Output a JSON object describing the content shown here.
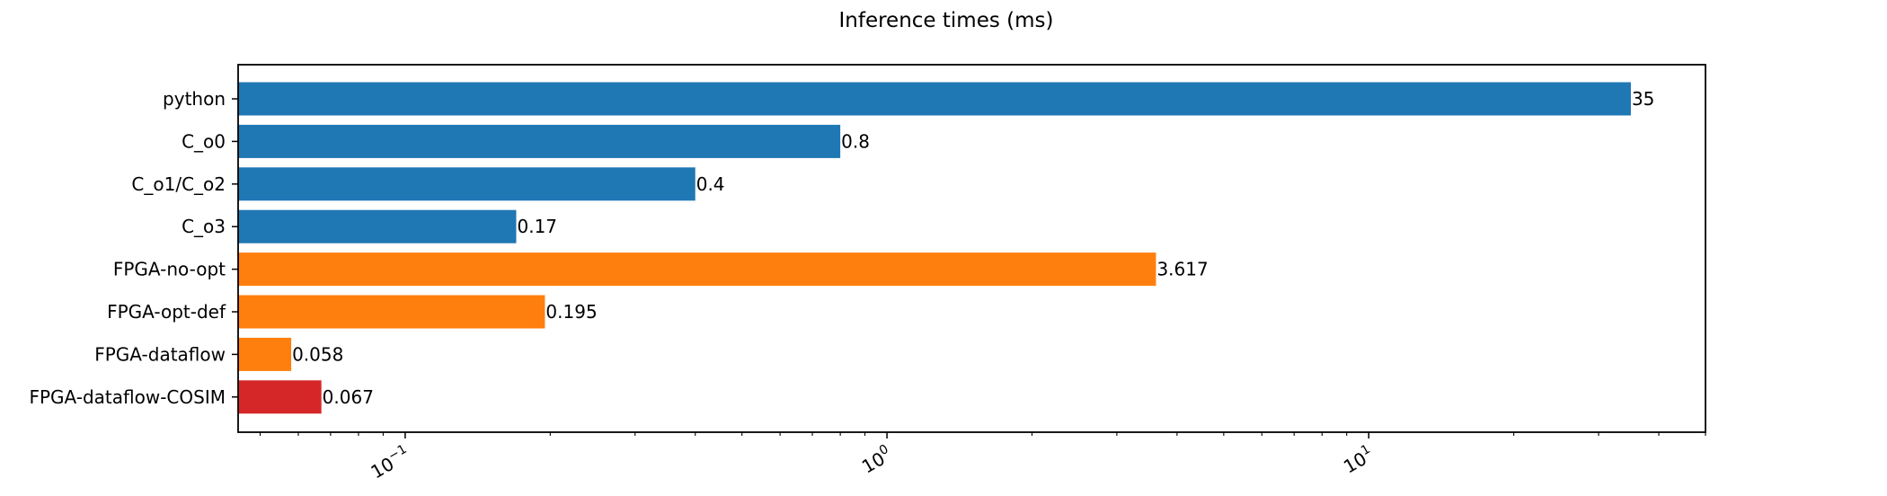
{
  "chart_data": {
    "type": "bar",
    "orientation": "horizontal",
    "title": "Inference times (ms)",
    "xlabel": "",
    "ylabel": "",
    "xscale": "log",
    "xlim": [
      0.045,
      50
    ],
    "grid": false,
    "categories": [
      "python",
      "C_o0",
      "C_o1/C_o2",
      "C_o3",
      "FPGA-no-opt",
      "FPGA-opt-def",
      "FPGA-dataflow",
      "FPGA-dataflow-COSIM"
    ],
    "values": [
      35,
      0.8,
      0.4,
      0.17,
      3.617,
      0.195,
      0.058,
      0.067
    ],
    "value_labels": [
      "35",
      "0.8",
      "0.4",
      "0.17",
      "3.617",
      "0.195",
      "0.058",
      "0.067"
    ],
    "colors": [
      "#1f77b4",
      "#1f77b4",
      "#1f77b4",
      "#1f77b4",
      "#ff7f0e",
      "#ff7f0e",
      "#ff7f0e",
      "#d62728"
    ],
    "major_ticks": [
      {
        "value": 0.1,
        "base": "10",
        "exp": "−1"
      },
      {
        "value": 1,
        "base": "10",
        "exp": "0"
      },
      {
        "value": 10,
        "base": "10",
        "exp": "1"
      }
    ]
  }
}
